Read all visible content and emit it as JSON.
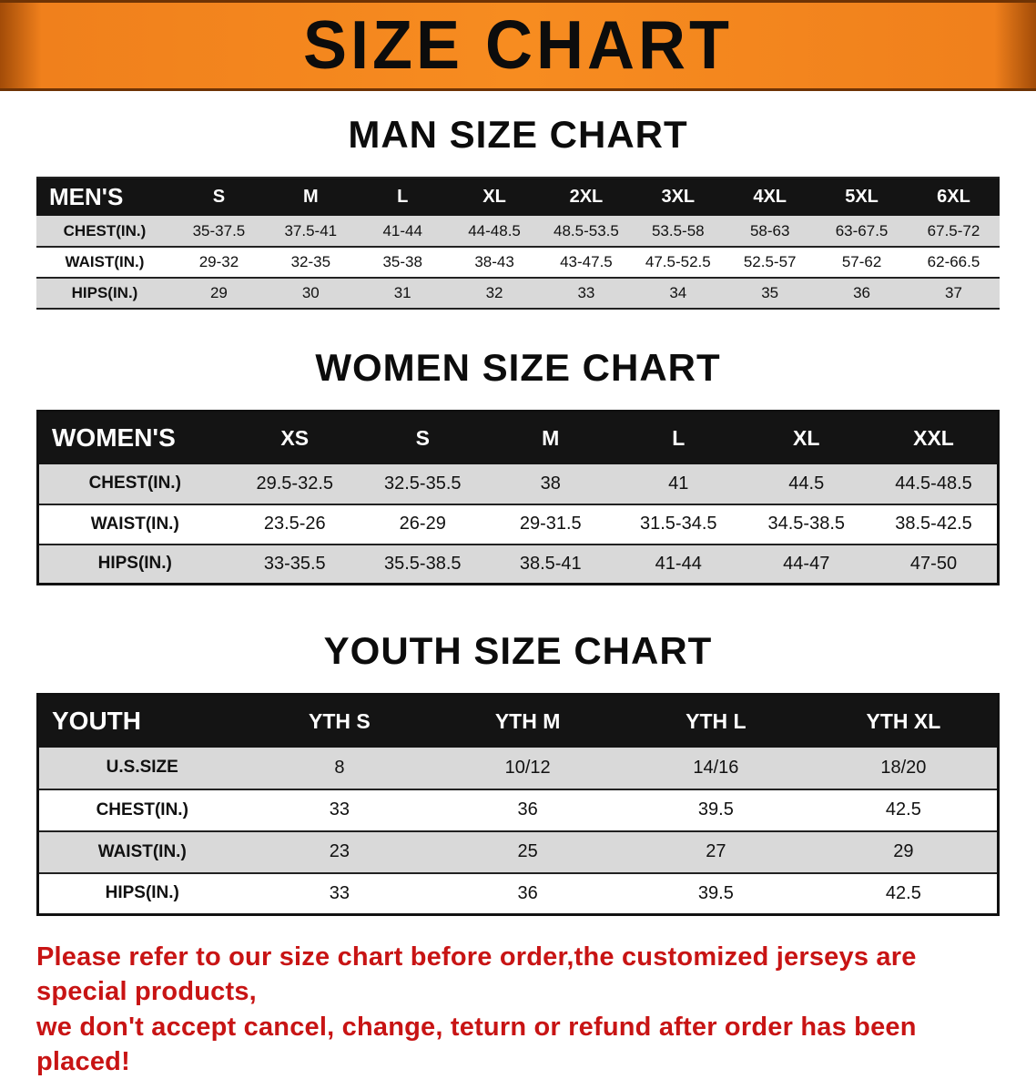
{
  "banner": {
    "title": "SIZE CHART",
    "background_color": "#F6861F",
    "title_color": "#0C0C0C"
  },
  "sections": [
    {
      "id": "men",
      "heading": "MAN SIZE CHART",
      "table": {
        "header": [
          "MEN'S",
          "S",
          "M",
          "L",
          "XL",
          "2XL",
          "3XL",
          "4XL",
          "5XL",
          "6XL"
        ],
        "rows": [
          [
            "CHEST(IN.)",
            "35-37.5",
            "37.5-41",
            "41-44",
            "44-48.5",
            "48.5-53.5",
            "53.5-58",
            "58-63",
            "63-67.5",
            "67.5-72"
          ],
          [
            "WAIST(IN.)",
            "29-32",
            "32-35",
            "35-38",
            "38-43",
            "43-47.5",
            "47.5-52.5",
            "52.5-57",
            "57-62",
            "62-66.5"
          ],
          [
            "HIPS(IN.)",
            "29",
            "30",
            "31",
            "32",
            "33",
            "34",
            "35",
            "36",
            "37"
          ]
        ]
      }
    },
    {
      "id": "women",
      "heading": "WOMEN SIZE CHART",
      "table": {
        "header": [
          "WOMEN'S",
          "XS",
          "S",
          "M",
          "L",
          "XL",
          "XXL"
        ],
        "rows": [
          [
            "CHEST(IN.)",
            "29.5-32.5",
            "32.5-35.5",
            "38",
            "41",
            "44.5",
            "44.5-48.5"
          ],
          [
            "WAIST(IN.)",
            "23.5-26",
            "26-29",
            "29-31.5",
            "31.5-34.5",
            "34.5-38.5",
            "38.5-42.5"
          ],
          [
            "HIPS(IN.)",
            "33-35.5",
            "35.5-38.5",
            "38.5-41",
            "41-44",
            "44-47",
            "47-50"
          ]
        ]
      }
    },
    {
      "id": "youth",
      "heading": "YOUTH SIZE CHART",
      "table": {
        "header": [
          "YOUTH",
          "YTH S",
          "YTH M",
          "YTH L",
          "YTH XL"
        ],
        "rows": [
          [
            "U.S.SIZE",
            "8",
            "10/12",
            "14/16",
            "18/20"
          ],
          [
            "CHEST(IN.)",
            "33",
            "36",
            "39.5",
            "42.5"
          ],
          [
            "WAIST(IN.)",
            "23",
            "25",
            "27",
            "29"
          ],
          [
            "HIPS(IN.)",
            "33",
            "36",
            "39.5",
            "42.5"
          ]
        ]
      }
    }
  ],
  "note": {
    "color": "#C81414",
    "line1": "Please refer to our size chart before order,the customized jerseys are special products,",
    "line2": "we don't accept cancel, change, teturn or refund after order has been placed!"
  }
}
